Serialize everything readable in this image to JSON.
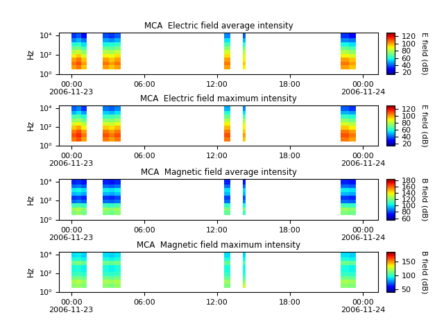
{
  "chart_data": [
    {
      "type": "heatmap",
      "title": "MCA  Electric field average intensity",
      "y_label": "Hz",
      "log": "y",
      "x": [
        "2006-11-23 00:00",
        "2006-11-23 00:25",
        "2006-11-23 00:50",
        "2006-11-23 01:15",
        "2006-11-23 02:35",
        "2006-11-23 03:05",
        "2006-11-23 03:35",
        "2006-11-23 04:05",
        "2006-11-23 12:35",
        "2006-11-23 13:05",
        "2006-11-23 14:05",
        "2006-11-23 14:20",
        "2006-11-23 22:10",
        "2006-11-23 22:50",
        "2006-11-23 23:25"
      ],
      "y": [
        3,
        8,
        20,
        50,
        130,
        320,
        800,
        2000,
        5000,
        20000
      ],
      "cells": [
        [
          100,
          105,
          95,
          null,
          100,
          95,
          100,
          null,
          100,
          null,
          90,
          null,
          100,
          95
        ],
        [
          105,
          110,
          100,
          null,
          105,
          100,
          105,
          null,
          105,
          null,
          95,
          null,
          105,
          100
        ],
        [
          100,
          105,
          95,
          null,
          100,
          95,
          100,
          null,
          100,
          null,
          90,
          null,
          100,
          95
        ],
        [
          90,
          95,
          85,
          null,
          90,
          88,
          92,
          null,
          92,
          null,
          85,
          null,
          90,
          85
        ],
        [
          80,
          85,
          75,
          null,
          80,
          78,
          82,
          null,
          85,
          null,
          80,
          null,
          80,
          75
        ],
        [
          70,
          72,
          65,
          null,
          70,
          68,
          72,
          null,
          75,
          null,
          72,
          null,
          70,
          65
        ],
        [
          60,
          62,
          55,
          null,
          58,
          60,
          62,
          null,
          65,
          null,
          62,
          null,
          58,
          55
        ],
        [
          45,
          50,
          42,
          null,
          48,
          45,
          50,
          null,
          55,
          null,
          50,
          null,
          45,
          42
        ],
        [
          35,
          40,
          30,
          null,
          38,
          35,
          40,
          null,
          45,
          null,
          40,
          null,
          35,
          30
        ]
      ],
      "xlim": [
        "2006-11-22 23:00",
        "2006-11-24 01:15"
      ],
      "xticks": [
        {
          "value": "2006-11-23 00:00",
          "label": "00:00\n2006-11-23"
        },
        {
          "value": "2006-11-23 06:00",
          "label": "06:00"
        },
        {
          "value": "2006-11-23 12:00",
          "label": "12:00"
        },
        {
          "value": "2006-11-23 18:00",
          "label": "18:00"
        },
        {
          "value": "2006-11-24 00:00",
          "label": "00:00\n2006-11-24"
        }
      ],
      "ylim": [
        1,
        20000
      ],
      "yticks": [
        {
          "value": 1,
          "label": "10⁰"
        },
        {
          "value": 100,
          "label": "10²"
        },
        {
          "value": 10000,
          "label": "10⁴"
        }
      ],
      "colorbar_label": "E field (dB)",
      "colorbar_range": [
        15,
        130
      ],
      "colorbar_ticks": [
        20,
        40,
        60,
        80,
        100,
        120
      ]
    },
    {
      "type": "heatmap",
      "title": "MCA  Electric field maximum intensity",
      "y_label": "Hz",
      "log": "y",
      "x": [
        "2006-11-23 00:00",
        "2006-11-23 00:25",
        "2006-11-23 00:50",
        "2006-11-23 01:15",
        "2006-11-23 02:35",
        "2006-11-23 03:05",
        "2006-11-23 03:35",
        "2006-11-23 04:05",
        "2006-11-23 12:35",
        "2006-11-23 13:05",
        "2006-11-23 14:05",
        "2006-11-23 14:20",
        "2006-11-23 22:10",
        "2006-11-23 22:50",
        "2006-11-23 23:25"
      ],
      "y": [
        3,
        8,
        20,
        50,
        130,
        320,
        800,
        2000,
        5000,
        20000
      ],
      "cells": [
        [
          105,
          110,
          100,
          null,
          105,
          100,
          105,
          null,
          105,
          null,
          95,
          null,
          105,
          100
        ],
        [
          110,
          115,
          105,
          null,
          110,
          105,
          110,
          null,
          110,
          null,
          100,
          null,
          110,
          105
        ],
        [
          105,
          110,
          100,
          null,
          105,
          100,
          105,
          null,
          105,
          null,
          95,
          null,
          105,
          100
        ],
        [
          95,
          100,
          90,
          null,
          95,
          92,
          97,
          null,
          97,
          null,
          90,
          null,
          95,
          90
        ],
        [
          85,
          90,
          80,
          null,
          85,
          83,
          87,
          null,
          90,
          null,
          85,
          null,
          85,
          80
        ],
        [
          75,
          77,
          70,
          null,
          75,
          73,
          77,
          null,
          80,
          null,
          77,
          null,
          75,
          70
        ],
        [
          65,
          67,
          60,
          null,
          63,
          65,
          67,
          null,
          70,
          null,
          67,
          null,
          63,
          60
        ],
        [
          50,
          55,
          47,
          null,
          53,
          50,
          55,
          null,
          60,
          null,
          55,
          null,
          50,
          47
        ],
        [
          40,
          45,
          35,
          null,
          43,
          40,
          45,
          null,
          50,
          null,
          45,
          null,
          40,
          35
        ]
      ],
      "xlim": [
        "2006-11-22 23:00",
        "2006-11-24 01:15"
      ],
      "xticks": [
        {
          "value": "2006-11-23 00:00",
          "label": "00:00\n2006-11-23"
        },
        {
          "value": "2006-11-23 06:00",
          "label": "06:00"
        },
        {
          "value": "2006-11-23 12:00",
          "label": "12:00"
        },
        {
          "value": "2006-11-23 18:00",
          "label": "18:00"
        },
        {
          "value": "2006-11-24 00:00",
          "label": "00:00\n2006-11-24"
        }
      ],
      "ylim": [
        1,
        20000
      ],
      "yticks": [
        {
          "value": 1,
          "label": "10⁰"
        },
        {
          "value": 100,
          "label": "10²"
        },
        {
          "value": 10000,
          "label": "10⁴"
        }
      ],
      "colorbar_label": "E field (dB)",
      "colorbar_range": [
        15,
        130
      ],
      "colorbar_ticks": [
        20,
        40,
        60,
        80,
        100,
        120
      ]
    },
    {
      "type": "heatmap",
      "title": "MCA  Magnetic field average intensity",
      "y_label": "Hz",
      "log": "y",
      "x": [
        "2006-11-23 00:00",
        "2006-11-23 00:25",
        "2006-11-23 00:50",
        "2006-11-23 01:15",
        "2006-11-23 02:35",
        "2006-11-23 03:05",
        "2006-11-23 03:35",
        "2006-11-23 04:05",
        "2006-11-23 12:35",
        "2006-11-23 13:05",
        "2006-11-23 14:05",
        "2006-11-23 14:20",
        "2006-11-23 22:10",
        "2006-11-23 22:50",
        "2006-11-23 23:25"
      ],
      "y": [
        3,
        8,
        20,
        50,
        130,
        320,
        800,
        2000,
        5000,
        20000
      ],
      "cells": [
        [
          120,
          125,
          118,
          null,
          120,
          118,
          122,
          null,
          115,
          null,
          110,
          null,
          120,
          118
        ],
        [
          125,
          128,
          122,
          null,
          125,
          122,
          126,
          null,
          120,
          null,
          118,
          null,
          125,
          122
        ],
        [
          110,
          112,
          108,
          null,
          110,
          108,
          112,
          null,
          108,
          null,
          105,
          null,
          110,
          108
        ],
        [
          85,
          88,
          83,
          null,
          85,
          83,
          86,
          null,
          85,
          null,
          88,
          null,
          85,
          83
        ],
        [
          78,
          80,
          76,
          null,
          78,
          76,
          80,
          null,
          80,
          null,
          82,
          null,
          78,
          76
        ],
        [
          95,
          97,
          93,
          null,
          95,
          93,
          96,
          null,
          95,
          null,
          95,
          null,
          95,
          93
        ],
        [
          102,
          104,
          100,
          null,
          102,
          100,
          103,
          null,
          100,
          null,
          98,
          null,
          102,
          100
        ],
        [
          85,
          87,
          83,
          null,
          85,
          83,
          86,
          null,
          85,
          null,
          84,
          null,
          85,
          83
        ],
        [
          75,
          77,
          73,
          null,
          75,
          73,
          76,
          null,
          75,
          null,
          74,
          null,
          75,
          73
        ]
      ],
      "xlim": [
        "2006-11-22 23:00",
        "2006-11-24 01:15"
      ],
      "xticks": [
        {
          "value": "2006-11-23 00:00",
          "label": "00:00\n2006-11-23"
        },
        {
          "value": "2006-11-23 06:00",
          "label": "06:00"
        },
        {
          "value": "2006-11-23 12:00",
          "label": "12:00"
        },
        {
          "value": "2006-11-23 18:00",
          "label": "18:00"
        },
        {
          "value": "2006-11-24 00:00",
          "label": "00:00\n2006-11-24"
        }
      ],
      "ylim": [
        1,
        20000
      ],
      "yticks": [
        {
          "value": 1,
          "label": "10⁰"
        },
        {
          "value": 100,
          "label": "10²"
        },
        {
          "value": 10000,
          "label": "10⁴"
        }
      ],
      "colorbar_label": "B field (dB)",
      "colorbar_range": [
        55,
        185
      ],
      "colorbar_ticks": [
        60,
        80,
        100,
        120,
        140,
        160,
        180
      ]
    },
    {
      "type": "heatmap",
      "title": "MCA  Magnetic field maximum intensity",
      "y_label": "Hz",
      "log": "y",
      "x": [
        "2006-11-23 00:00",
        "2006-11-23 00:25",
        "2006-11-23 00:50",
        "2006-11-23 01:15",
        "2006-11-23 02:35",
        "2006-11-23 03:05",
        "2006-11-23 03:35",
        "2006-11-23 04:05",
        "2006-11-23 12:35",
        "2006-11-23 13:05",
        "2006-11-23 14:05",
        "2006-11-23 14:20",
        "2006-11-23 22:10",
        "2006-11-23 22:50",
        "2006-11-23 23:25"
      ],
      "y": [
        3,
        8,
        20,
        50,
        130,
        320,
        800,
        2000,
        5000,
        20000
      ],
      "cells": [
        [
          115,
          118,
          113,
          null,
          115,
          113,
          117,
          null,
          112,
          null,
          125,
          null,
          115,
          113
        ],
        [
          120,
          122,
          118,
          null,
          120,
          118,
          121,
          null,
          118,
          null,
          115,
          null,
          120,
          118
        ],
        [
          110,
          112,
          108,
          null,
          110,
          108,
          111,
          null,
          108,
          null,
          105,
          null,
          110,
          108
        ],
        [
          100,
          102,
          98,
          null,
          100,
          98,
          101,
          null,
          100,
          null,
          98,
          null,
          100,
          98
        ],
        [
          95,
          97,
          93,
          null,
          95,
          93,
          96,
          null,
          95,
          null,
          94,
          null,
          95,
          93
        ],
        [
          95,
          97,
          93,
          null,
          95,
          93,
          96,
          null,
          95,
          null,
          94,
          null,
          95,
          93
        ],
        [
          110,
          112,
          108,
          null,
          110,
          108,
          111,
          null,
          108,
          null,
          105,
          null,
          110,
          108
        ],
        [
          95,
          97,
          93,
          null,
          95,
          93,
          96,
          null,
          95,
          null,
          94,
          null,
          95,
          93
        ],
        [
          90,
          92,
          88,
          null,
          90,
          88,
          91,
          null,
          90,
          null,
          89,
          null,
          90,
          88
        ]
      ],
      "xlim": [
        "2006-11-22 23:00",
        "2006-11-24 01:15"
      ],
      "xticks": [
        {
          "value": "2006-11-23 00:00",
          "label": "00:00\n2006-11-23"
        },
        {
          "value": "2006-11-23 06:00",
          "label": "06:00"
        },
        {
          "value": "2006-11-23 12:00",
          "label": "12:00"
        },
        {
          "value": "2006-11-23 18:00",
          "label": "18:00"
        },
        {
          "value": "2006-11-24 00:00",
          "label": "00:00\n2006-11-24"
        }
      ],
      "ylim": [
        1,
        20000
      ],
      "yticks": [
        {
          "value": 1,
          "label": "10⁰"
        },
        {
          "value": 100,
          "label": "10²"
        },
        {
          "value": 10000,
          "label": "10⁴"
        }
      ],
      "colorbar_label": "B field (dB)",
      "colorbar_range": [
        40,
        185
      ],
      "colorbar_ticks": [
        50,
        100,
        150
      ]
    }
  ]
}
